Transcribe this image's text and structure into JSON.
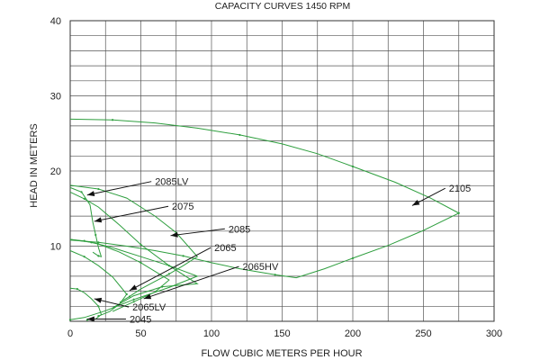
{
  "chart_data": {
    "type": "line",
    "title": "CAPACITY CURVES 1450 RPM",
    "xlabel": "FLOW CUBIC METERS PER HOUR",
    "ylabel": "HEAD IN METERS",
    "xlim": [
      0,
      300
    ],
    "ylim": [
      0,
      40
    ],
    "x_ticks": [
      0,
      50,
      100,
      150,
      200,
      250,
      300
    ],
    "y_ticks": [
      10,
      20,
      30,
      40
    ],
    "x_minor_step": 25,
    "y_minor_step": 2,
    "grid": true,
    "line_color": "#2e9e3e",
    "series": [
      {
        "name": "2105",
        "x": [
          0,
          30,
          60,
          90,
          120,
          150,
          175,
          200,
          230,
          255,
          275,
          250,
          225,
          200,
          180,
          160,
          145,
          120,
          100,
          80,
          60,
          40,
          20,
          0
        ],
        "y": [
          26.9,
          26.8,
          26.4,
          25.7,
          24.8,
          23.6,
          22.3,
          20.6,
          18.5,
          16.4,
          14.4,
          12.1,
          10.1,
          8.4,
          7.0,
          5.8,
          6.2,
          7.0,
          7.8,
          8.7,
          9.4,
          10.0,
          10.5,
          10.8
        ]
      },
      {
        "name": "2085",
        "x": [
          0,
          20,
          40,
          60,
          75,
          90,
          80,
          70,
          60,
          50,
          42,
          35
        ],
        "y": [
          18.1,
          17.6,
          16.4,
          14.0,
          11.8,
          8.6,
          7.4,
          6.3,
          5.3,
          4.3,
          3.3,
          2.5
        ]
      },
      {
        "name": "2085LV",
        "x": [
          0,
          8,
          14,
          16,
          18,
          20,
          22,
          20,
          16
        ],
        "y": [
          17.8,
          17.2,
          15.5,
          13.2,
          11.5,
          9.8,
          8.6,
          8.7,
          9.2
        ]
      },
      {
        "name": "2075",
        "x": [
          0,
          10,
          20,
          35,
          50,
          70,
          90,
          65,
          45,
          30
        ],
        "y": [
          17.2,
          16.3,
          15.2,
          12.8,
          10.2,
          7.4,
          5.0,
          4.6,
          3.4,
          1.8
        ]
      },
      {
        "name": "2065",
        "x": [
          0,
          10,
          20,
          35,
          50,
          70,
          60,
          45,
          30
        ],
        "y": [
          10.9,
          10.7,
          10.3,
          9.2,
          7.8,
          5.5,
          3.9,
          2.6,
          1.3
        ]
      },
      {
        "name": "2065HV",
        "x": [
          0,
          15,
          30,
          50,
          70,
          90,
          70,
          45,
          25,
          10,
          0
        ],
        "y": [
          10.9,
          10.5,
          9.8,
          8.6,
          7.4,
          6.0,
          4.5,
          2.9,
          1.4,
          0.5,
          0.2
        ]
      },
      {
        "name": "2065LV",
        "x": [
          0,
          10,
          20,
          30,
          40,
          35,
          28,
          20
        ],
        "y": [
          9.4,
          8.6,
          7.4,
          5.9,
          3.6,
          2.3,
          1.3,
          0.7
        ]
      },
      {
        "name": "2045",
        "x": [
          0,
          5,
          10,
          15,
          20,
          22,
          18,
          12
        ],
        "y": [
          4.4,
          4.3,
          3.8,
          3.0,
          2.0,
          0.9,
          0.3,
          0.2
        ]
      }
    ],
    "callouts": [
      {
        "label": "2085LV",
        "text_at": [
          60,
          18.6
        ],
        "tip": [
          12,
          16.8
        ]
      },
      {
        "label": "2075",
        "text_at": [
          72,
          15.3
        ],
        "tip": [
          17,
          13.3
        ]
      },
      {
        "label": "2085",
        "text_at": [
          112,
          12.3
        ],
        "tip": [
          71,
          11.4
        ]
      },
      {
        "label": "2065",
        "text_at": [
          102,
          9.8
        ],
        "tip": [
          42,
          4.1
        ]
      },
      {
        "label": "2065HV",
        "text_at": [
          122,
          7.3
        ],
        "tip": [
          52,
          3.0
        ]
      },
      {
        "label": "2105",
        "text_at": [
          268,
          17.7
        ],
        "tip": [
          242,
          15.4
        ]
      },
      {
        "label": "2065LV",
        "text_at": [
          44,
          1.9
        ],
        "tip": [
          17,
          3.0
        ]
      },
      {
        "label": "2045",
        "text_at": [
          42,
          0.3
        ],
        "tip": [
          12,
          0.3
        ]
      }
    ]
  }
}
